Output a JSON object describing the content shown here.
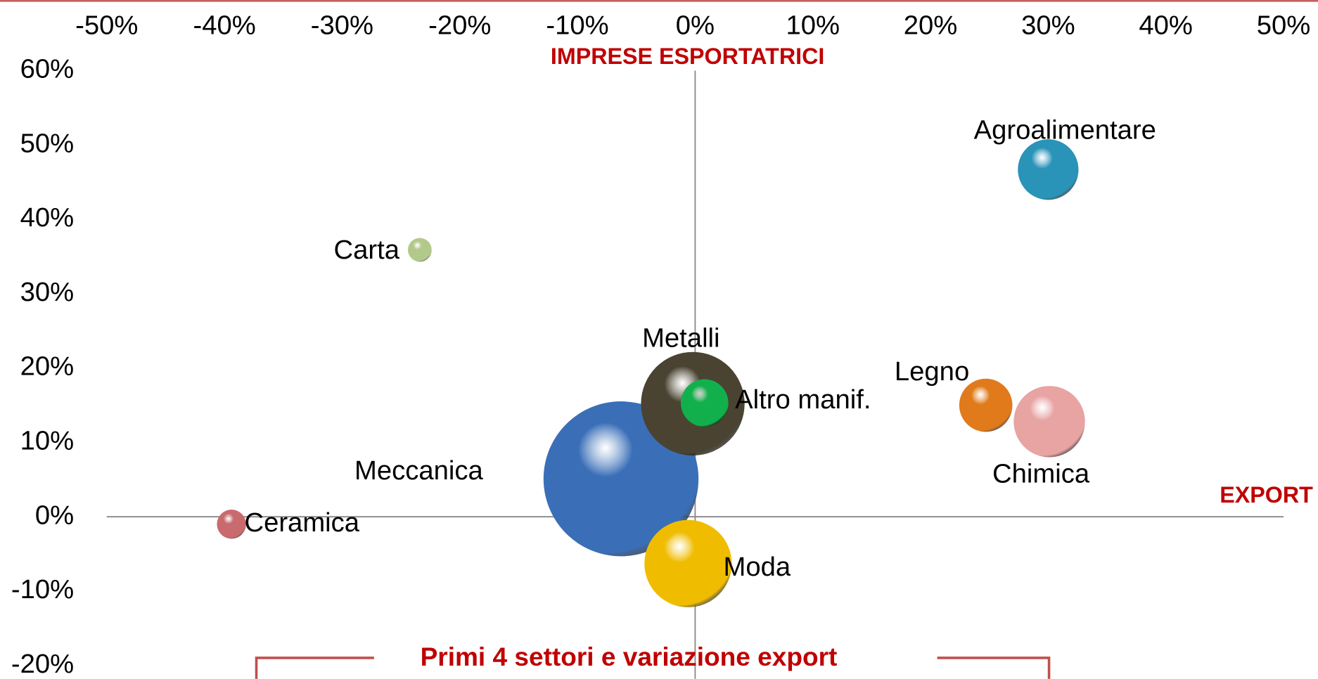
{
  "chart_data": {
    "type": "bubble",
    "x_label": "EXPORT",
    "y_label": "IMPRESE ESPORTATRICI",
    "annotation": "Primi 4 settori e variazione export",
    "xlim": [
      -50,
      50
    ],
    "xticks": [
      {
        "value": -50,
        "label": "-50%"
      },
      {
        "value": -40,
        "label": "-40%"
      },
      {
        "value": -30,
        "label": "-30%"
      },
      {
        "value": -20,
        "label": "-20%"
      },
      {
        "value": -10,
        "label": "-10%"
      },
      {
        "value": 0,
        "label": "0%"
      },
      {
        "value": 10,
        "label": "10%"
      },
      {
        "value": 20,
        "label": "20%"
      },
      {
        "value": 30,
        "label": "30%"
      },
      {
        "value": 40,
        "label": "40%"
      },
      {
        "value": 50,
        "label": "50%"
      }
    ],
    "ylim": [
      -20,
      60
    ],
    "yticks": [
      {
        "value": -20,
        "label": "-20%"
      },
      {
        "value": -10,
        "label": "-10%"
      },
      {
        "value": 0,
        "label": "0%"
      },
      {
        "value": 10,
        "label": "10%"
      },
      {
        "value": 20,
        "label": "20%"
      },
      {
        "value": 30,
        "label": "30%"
      },
      {
        "value": 40,
        "label": "40%"
      },
      {
        "value": 50,
        "label": "50%"
      },
      {
        "value": 60,
        "label": "60%"
      }
    ],
    "series": [
      {
        "name": "Meccanica",
        "color": "#3a6fb8",
        "x": [
          -6.3
        ],
        "values": [
          5.1
        ],
        "sizes": [
          85
        ]
      },
      {
        "name": "Metalli",
        "color": "#4a4331",
        "x": [
          -0.2
        ],
        "values": [
          15.2
        ],
        "sizes": [
          38
        ]
      },
      {
        "name": "Moda",
        "color": "#f0bc00",
        "x": [
          -0.6
        ],
        "values": [
          -6.3
        ],
        "sizes": [
          27
        ]
      },
      {
        "name": "Chimica",
        "color": "#e8a3a3",
        "x": [
          30.1
        ],
        "values": [
          12.8
        ],
        "sizes": [
          18
        ]
      },
      {
        "name": "Agroalimentare",
        "color": "#2a93b8",
        "x": [
          30
        ],
        "values": [
          46.7
        ],
        "sizes": [
          13
        ]
      },
      {
        "name": "Legno",
        "color": "#e07a1a",
        "x": [
          24.7
        ],
        "values": [
          15
        ],
        "sizes": [
          10
        ]
      },
      {
        "name": "Altro manif.",
        "color": "#12b04c",
        "x": [
          0.8
        ],
        "values": [
          15.3
        ],
        "sizes": [
          8
        ]
      },
      {
        "name": "Ceramica",
        "color": "#c96a6e",
        "x": [
          -39.4
        ],
        "values": [
          -1
        ],
        "sizes": [
          3
        ]
      },
      {
        "name": "Carta",
        "color": "#b2c98a",
        "x": [
          -23.4
        ],
        "values": [
          35.9
        ],
        "sizes": [
          2
        ]
      }
    ]
  }
}
